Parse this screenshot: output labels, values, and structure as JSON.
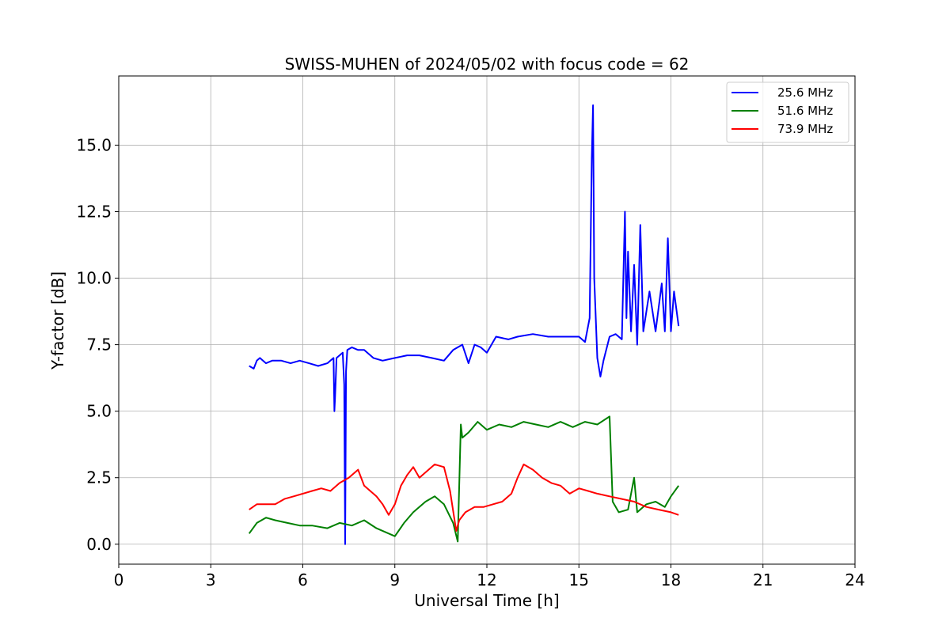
{
  "chart_data": {
    "type": "line",
    "title": "SWISS-MUHEN of 2024/05/02 with focus code = 62",
    "xlabel": "Universal Time [h]",
    "ylabel": "Y-factor [dB]",
    "xlim": [
      0,
      24
    ],
    "ylim": [
      -0.75,
      17.6
    ],
    "xticks": [
      0,
      3,
      6,
      9,
      12,
      15,
      18,
      21,
      24
    ],
    "xtick_labels": [
      "0",
      "3",
      "6",
      "9",
      "12",
      "15",
      "18",
      "21",
      "24"
    ],
    "yticks": [
      0,
      2.5,
      5,
      7.5,
      10,
      12.5,
      15
    ],
    "ytick_labels": [
      "0.0",
      "2.5",
      "5.0",
      "7.5",
      "10.0",
      "12.5",
      "15.0"
    ],
    "grid": true,
    "legend_position": "top-right",
    "series": [
      {
        "name": "25.6 MHz",
        "color": "#0000ff",
        "x": [
          4.25,
          4.4,
          4.5,
          4.6,
          4.8,
          5.0,
          5.3,
          5.6,
          5.9,
          6.2,
          6.5,
          6.8,
          7.0,
          7.03,
          7.05,
          7.1,
          7.3,
          7.35,
          7.38,
          7.41,
          7.45,
          7.6,
          7.8,
          8.0,
          8.3,
          8.6,
          9.0,
          9.4,
          9.8,
          10.2,
          10.6,
          10.9,
          11.2,
          11.4,
          11.6,
          11.8,
          12.0,
          12.3,
          12.7,
          13.0,
          13.5,
          14.0,
          14.5,
          15.0,
          15.2,
          15.35,
          15.42,
          15.46,
          15.5,
          15.6,
          15.7,
          15.8,
          16.0,
          16.2,
          16.4,
          16.5,
          16.55,
          16.6,
          16.7,
          16.8,
          16.9,
          17.0,
          17.1,
          17.3,
          17.5,
          17.7,
          17.8,
          17.9,
          18.0,
          18.1,
          18.25
        ],
        "y": [
          6.7,
          6.6,
          6.9,
          7.0,
          6.8,
          6.9,
          6.9,
          6.8,
          6.9,
          6.8,
          6.7,
          6.8,
          7.0,
          5.0,
          5.5,
          7.0,
          7.2,
          6.0,
          0.0,
          6.5,
          7.3,
          7.4,
          7.3,
          7.3,
          7.0,
          6.9,
          7.0,
          7.1,
          7.1,
          7.0,
          6.9,
          7.3,
          7.5,
          6.8,
          7.5,
          7.4,
          7.2,
          7.8,
          7.7,
          7.8,
          7.9,
          7.8,
          7.8,
          7.8,
          7.6,
          8.5,
          14.5,
          16.5,
          10.0,
          7.0,
          6.3,
          6.9,
          7.8,
          7.9,
          7.7,
          12.5,
          8.5,
          11.0,
          8.0,
          10.5,
          7.5,
          12.0,
          8.0,
          9.5,
          8.0,
          9.8,
          8.0,
          11.5,
          8.0,
          9.5,
          8.2
        ]
      },
      {
        "name": "51.6 MHz",
        "color": "#008000",
        "x": [
          4.25,
          4.5,
          4.8,
          5.1,
          5.5,
          5.9,
          6.3,
          6.8,
          7.2,
          7.6,
          8.0,
          8.4,
          8.8,
          9.0,
          9.3,
          9.6,
          10.0,
          10.3,
          10.6,
          10.9,
          11.05,
          11.15,
          11.2,
          11.4,
          11.7,
          12.0,
          12.4,
          12.8,
          13.2,
          13.6,
          14.0,
          14.4,
          14.8,
          15.2,
          15.6,
          16.0,
          16.1,
          16.3,
          16.6,
          16.8,
          16.9,
          17.2,
          17.5,
          17.8,
          18.0,
          18.25
        ],
        "y": [
          0.4,
          0.8,
          1.0,
          0.9,
          0.8,
          0.7,
          0.7,
          0.6,
          0.8,
          0.7,
          0.9,
          0.6,
          0.4,
          0.3,
          0.8,
          1.2,
          1.6,
          1.8,
          1.5,
          0.8,
          0.1,
          4.5,
          4.0,
          4.2,
          4.6,
          4.3,
          4.5,
          4.4,
          4.6,
          4.5,
          4.4,
          4.6,
          4.4,
          4.6,
          4.5,
          4.8,
          1.6,
          1.2,
          1.3,
          2.5,
          1.2,
          1.5,
          1.6,
          1.4,
          1.8,
          2.2
        ]
      },
      {
        "name": "73.9 MHz",
        "color": "#ff0000",
        "x": [
          4.25,
          4.5,
          4.8,
          5.1,
          5.4,
          5.7,
          6.0,
          6.3,
          6.6,
          6.9,
          7.2,
          7.5,
          7.8,
          8.0,
          8.2,
          8.4,
          8.6,
          8.8,
          9.0,
          9.2,
          9.4,
          9.6,
          9.8,
          10.0,
          10.3,
          10.6,
          10.8,
          11.0,
          11.1,
          11.3,
          11.6,
          11.9,
          12.2,
          12.5,
          12.8,
          13.0,
          13.2,
          13.5,
          13.8,
          14.1,
          14.4,
          14.7,
          15.0,
          15.3,
          15.6,
          16.0,
          16.4,
          16.8,
          17.2,
          17.6,
          18.0,
          18.25
        ],
        "y": [
          1.3,
          1.5,
          1.5,
          1.5,
          1.7,
          1.8,
          1.9,
          2.0,
          2.1,
          2.0,
          2.3,
          2.5,
          2.8,
          2.2,
          2.0,
          1.8,
          1.5,
          1.1,
          1.5,
          2.2,
          2.6,
          2.9,
          2.5,
          2.7,
          3.0,
          2.9,
          2.0,
          0.5,
          0.9,
          1.2,
          1.4,
          1.4,
          1.5,
          1.6,
          1.9,
          2.5,
          3.0,
          2.8,
          2.5,
          2.3,
          2.2,
          1.9,
          2.1,
          2.0,
          1.9,
          1.8,
          1.7,
          1.6,
          1.4,
          1.3,
          1.2,
          1.1
        ]
      }
    ]
  }
}
